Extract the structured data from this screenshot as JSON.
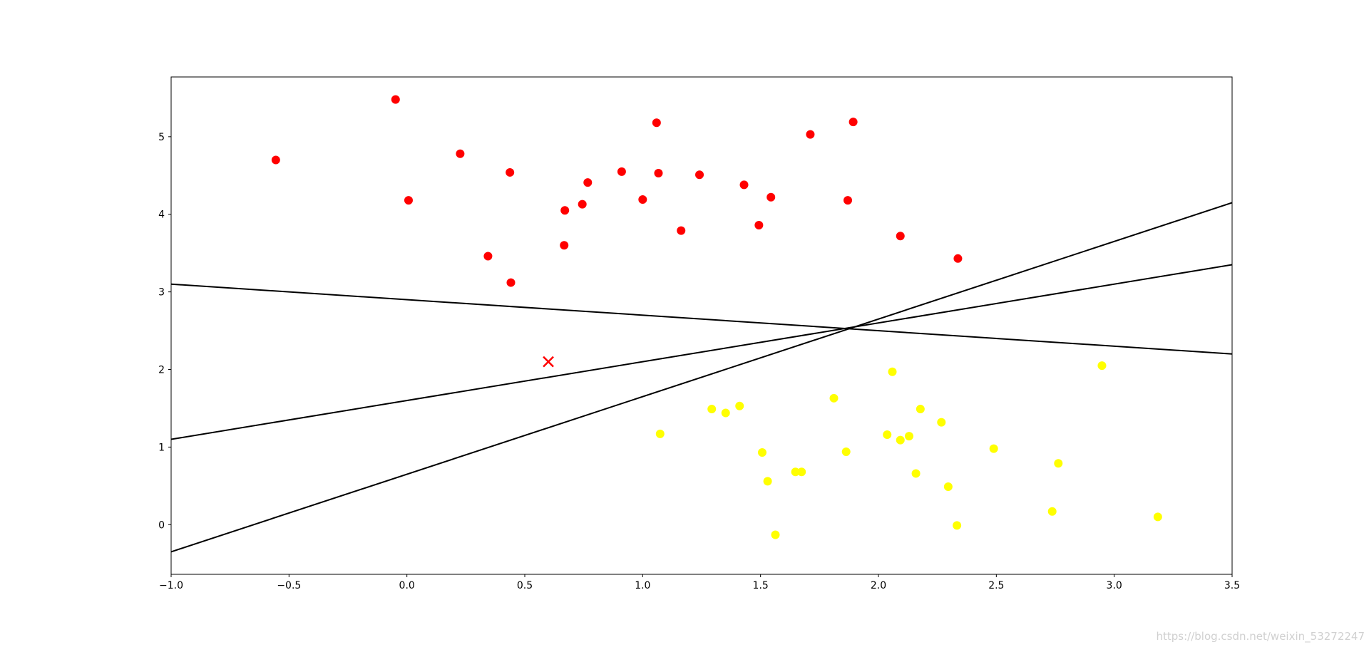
{
  "chart_data": {
    "type": "scatter",
    "xlim": [
      -1.0,
      3.5
    ],
    "ylim": [
      -0.64,
      5.77
    ],
    "xticks": [
      {
        "value": -1.0,
        "label": "−1.0"
      },
      {
        "value": -0.5,
        "label": "−0.5"
      },
      {
        "value": 0.0,
        "label": "0.0"
      },
      0.5,
      {
        "value": 1.0,
        "label": "1.0"
      },
      1.5,
      {
        "value": 2.0,
        "label": "2.0"
      },
      2.5,
      {
        "value": 3.0,
        "label": "3.0"
      },
      3.5
    ],
    "yticks": [
      0,
      1,
      2,
      3,
      4,
      5
    ],
    "series": [
      {
        "color": "#ff0000",
        "marker": "o",
        "x": [
          -0.556,
          -0.048,
          0.226,
          0.007,
          0.437,
          0.344,
          0.441,
          0.67,
          0.667,
          0.744,
          0.767,
          0.911,
          1.0,
          1.059,
          1.067,
          1.163,
          1.241,
          1.43,
          1.493,
          1.544,
          1.711,
          1.87,
          1.893,
          2.093,
          2.337
        ],
        "values": [
          4.7,
          5.48,
          4.78,
          4.18,
          4.54,
          3.46,
          3.12,
          4.05,
          3.6,
          4.13,
          4.41,
          4.55,
          4.19,
          5.18,
          4.53,
          3.79,
          4.51,
          4.38,
          3.86,
          4.22,
          5.03,
          4.18,
          5.19,
          3.72,
          3.43
        ]
      },
      {
        "color": "#ffff00",
        "marker": "o",
        "x": [
          1.074,
          1.293,
          1.352,
          1.411,
          1.507,
          1.53,
          1.563,
          1.648,
          1.674,
          1.811,
          1.863,
          2.037,
          2.059,
          2.093,
          2.13,
          2.159,
          2.178,
          2.267,
          2.296,
          2.333,
          2.489,
          2.737,
          2.763,
          2.948,
          3.185
        ],
        "values": [
          1.17,
          1.49,
          1.44,
          1.53,
          0.93,
          0.56,
          -0.13,
          0.68,
          0.68,
          1.63,
          0.94,
          1.16,
          1.97,
          1.09,
          1.14,
          0.66,
          1.49,
          1.32,
          0.49,
          -0.01,
          0.98,
          0.17,
          0.79,
          2.05,
          0.1
        ]
      },
      {
        "color": "#ff0000",
        "marker": "x",
        "x": [
          0.6
        ],
        "values": [
          2.1
        ]
      }
    ],
    "lines": [
      {
        "color": "#000000",
        "x": [
          -1.0,
          3.5
        ],
        "values": [
          -0.35,
          4.15
        ]
      },
      {
        "color": "#000000",
        "x": [
          -1.0,
          3.5
        ],
        "values": [
          1.1,
          3.35
        ]
      },
      {
        "color": "#000000",
        "x": [
          -1.0,
          3.5
        ],
        "values": [
          3.1,
          2.2
        ]
      }
    ]
  },
  "watermark": "https://blog.csdn.net/weixin_53272247"
}
